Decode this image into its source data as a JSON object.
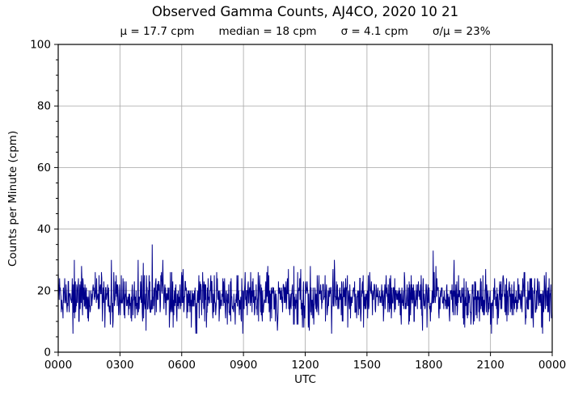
{
  "chart_data": {
    "type": "line",
    "title": "Observed Gamma Counts, AJ4CO, 2020 10 21",
    "stats": [
      "μ = 17.7 cpm",
      "median = 18 cpm",
      "σ = 4.1 cpm",
      "σ/μ = 23%"
    ],
    "xlabel": "UTC",
    "ylabel": "Counts per Minute (cpm)",
    "x_tick_labels": [
      "0000",
      "0300",
      "0600",
      "0900",
      "1200",
      "1500",
      "1800",
      "2100",
      "0000"
    ],
    "x_tick_hours": [
      0,
      3,
      6,
      9,
      12,
      15,
      18,
      21,
      24
    ],
    "xlim_hours": [
      0,
      24
    ],
    "y_ticks": [
      0,
      20,
      40,
      60,
      80,
      100
    ],
    "y_minor_step": 5,
    "ylim": [
      0,
      100
    ],
    "grid": true,
    "legend_position": "none",
    "line_color": "#00008B",
    "grid_color": "#b0b0b0",
    "axis_color": "#000000",
    "background": "#ffffff",
    "series": {
      "name": "observed gamma counts",
      "points_per_day": 1440,
      "mean": 17.7,
      "median": 18,
      "sigma": 4.1,
      "sigma_over_mu_pct": 23,
      "baseline_min": 6,
      "baseline_max": 30,
      "noise_seed": 20201021,
      "spikes": [
        {
          "utc_hour": 4.57,
          "value": 35
        },
        {
          "utc_hour": 13.42,
          "value": 30
        },
        {
          "utc_hour": 18.22,
          "value": 33
        }
      ]
    }
  }
}
